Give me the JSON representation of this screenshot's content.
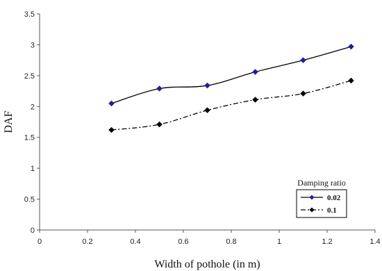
{
  "chart_data": {
    "type": "line",
    "xlabel": "Width of pothole  (in m)",
    "ylabel": "DAF",
    "xlim": [
      0,
      1.4
    ],
    "ylim": [
      0,
      3.5
    ],
    "xticks": [
      "0",
      "0.2",
      "0.4",
      "0.6",
      "0.8",
      "1",
      "1.2",
      "1.4"
    ],
    "yticks": [
      "0",
      "0.5",
      "1",
      "1.5",
      "2",
      "2.5",
      "3",
      "3.5"
    ],
    "grid": false,
    "legend": {
      "title": "Damping ratio",
      "placement": "lower-right"
    },
    "x": [
      0.3,
      0.5,
      0.7,
      0.9,
      1.1,
      1.3
    ],
    "series": [
      {
        "name": "0.02",
        "values": [
          2.05,
          2.29,
          2.34,
          2.56,
          2.75,
          2.97
        ],
        "color": "#000000",
        "marker_color": "#1f1f9a",
        "style": "solid"
      },
      {
        "name": "0.1",
        "values": [
          1.62,
          1.71,
          1.94,
          2.11,
          2.21,
          2.42
        ],
        "color": "#000000",
        "marker_color": "#000000",
        "style": "dash-dot"
      }
    ]
  }
}
